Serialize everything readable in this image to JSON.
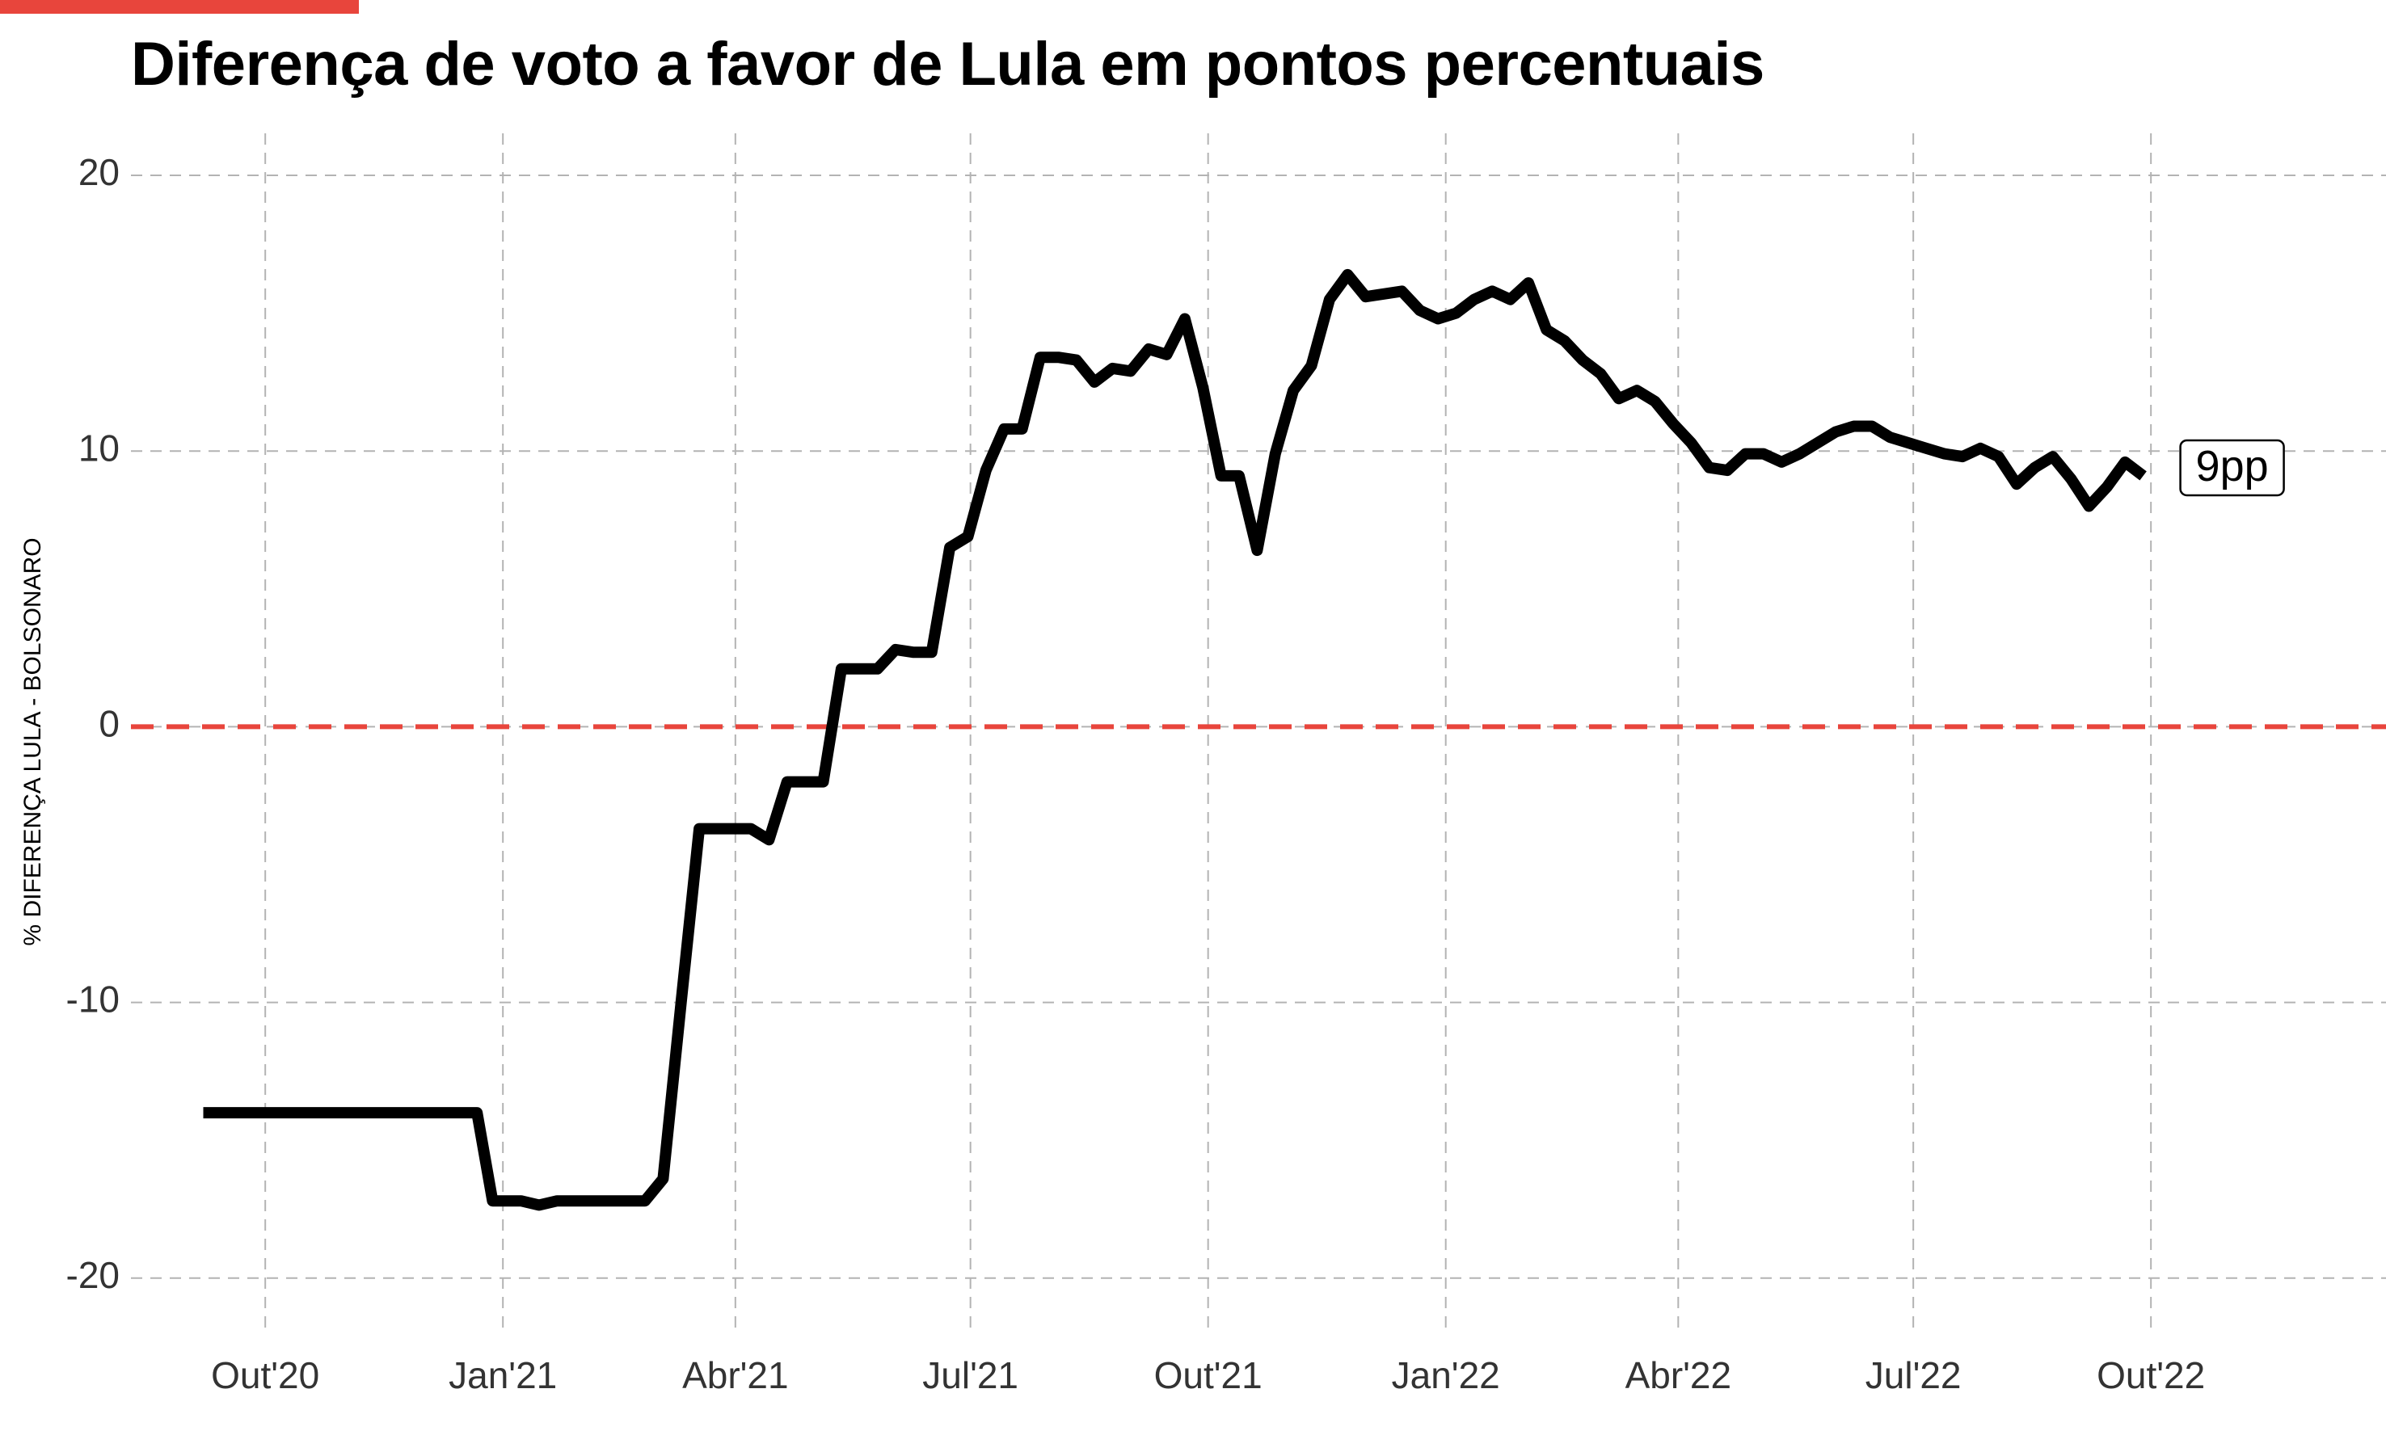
{
  "colors": {
    "accent": "#e8453c",
    "line": "#000000",
    "zero_line": "#e8453c",
    "grid": "#b3b3b3"
  },
  "chart_data": {
    "type": "line",
    "title": "Diferença de voto a favor de Lula em pontos percentuais",
    "ylabel": "% DIFERENÇA LULA - BOLSONARO",
    "xlabel": "",
    "ylim": [
      -22,
      20.5
    ],
    "xlim": [
      "2020-08-10",
      "2022-12-31"
    ],
    "grid": true,
    "x_ticks": [
      {
        "date": "2020-10-01",
        "label": "Out'20"
      },
      {
        "date": "2021-01-01",
        "label": "Jan'21"
      },
      {
        "date": "2021-04-01",
        "label": "Abr'21"
      },
      {
        "date": "2021-07-01",
        "label": "Jul'21"
      },
      {
        "date": "2021-10-01",
        "label": "Out'21"
      },
      {
        "date": "2022-01-01",
        "label": "Jan'22"
      },
      {
        "date": "2022-04-01",
        "label": "Abr'22"
      },
      {
        "date": "2022-07-01",
        "label": "Jul'22"
      },
      {
        "date": "2022-10-01",
        "label": "Out'22"
      }
    ],
    "y_ticks": [
      20,
      10,
      0,
      -10,
      -20
    ],
    "reference_line": {
      "y": 0,
      "style": "dashed"
    },
    "end_label": "9pp",
    "series": [
      {
        "points": [
          [
            "2020-09-07",
            -14.0
          ],
          [
            "2020-12-22",
            -14.0
          ],
          [
            "2020-12-28",
            -17.2
          ],
          [
            "2021-01-08",
            -17.2
          ],
          [
            "2021-01-15",
            -17.35
          ],
          [
            "2021-01-22",
            -17.2
          ],
          [
            "2021-02-25",
            -17.2
          ],
          [
            "2021-03-04",
            -16.4
          ],
          [
            "2021-03-11",
            -10.0
          ],
          [
            "2021-03-18",
            -3.7
          ],
          [
            "2021-04-07",
            -3.7
          ],
          [
            "2021-04-14",
            -4.1
          ],
          [
            "2021-04-21",
            -2.0
          ],
          [
            "2021-05-05",
            -2.0
          ],
          [
            "2021-05-12",
            2.1
          ],
          [
            "2021-05-26",
            2.1
          ],
          [
            "2021-06-02",
            2.8
          ],
          [
            "2021-06-09",
            2.7
          ],
          [
            "2021-06-16",
            2.7
          ],
          [
            "2021-06-23",
            6.5
          ],
          [
            "2021-06-30",
            6.9
          ],
          [
            "2021-07-07",
            9.3
          ],
          [
            "2021-07-14",
            10.8
          ],
          [
            "2021-07-21",
            10.8
          ],
          [
            "2021-07-28",
            13.4
          ],
          [
            "2021-08-04",
            13.4
          ],
          [
            "2021-08-11",
            13.3
          ],
          [
            "2021-08-18",
            12.5
          ],
          [
            "2021-08-25",
            13.0
          ],
          [
            "2021-09-01",
            12.9
          ],
          [
            "2021-09-08",
            13.7
          ],
          [
            "2021-09-15",
            13.5
          ],
          [
            "2021-09-22",
            14.8
          ],
          [
            "2021-09-29",
            12.3
          ],
          [
            "2021-10-06",
            9.1
          ],
          [
            "2021-10-13",
            9.1
          ],
          [
            "2021-10-20",
            6.4
          ],
          [
            "2021-10-27",
            9.9
          ],
          [
            "2021-11-03",
            12.2
          ],
          [
            "2021-11-10",
            13.1
          ],
          [
            "2021-11-17",
            15.5
          ],
          [
            "2021-11-24",
            16.4
          ],
          [
            "2021-12-01",
            15.6
          ],
          [
            "2021-12-08",
            15.7
          ],
          [
            "2021-12-15",
            15.8
          ],
          [
            "2021-12-22",
            15.1
          ],
          [
            "2021-12-29",
            14.8
          ],
          [
            "2022-01-05",
            15.0
          ],
          [
            "2022-01-12",
            15.5
          ],
          [
            "2022-01-19",
            15.8
          ],
          [
            "2022-01-26",
            15.5
          ],
          [
            "2022-02-02",
            16.1
          ],
          [
            "2022-02-09",
            14.4
          ],
          [
            "2022-02-16",
            14.0
          ],
          [
            "2022-02-23",
            13.3
          ],
          [
            "2022-03-02",
            12.8
          ],
          [
            "2022-03-09",
            11.9
          ],
          [
            "2022-03-16",
            12.2
          ],
          [
            "2022-03-23",
            11.8
          ],
          [
            "2022-03-30",
            11.0
          ],
          [
            "2022-04-06",
            10.3
          ],
          [
            "2022-04-13",
            9.4
          ],
          [
            "2022-04-20",
            9.3
          ],
          [
            "2022-04-27",
            9.9
          ],
          [
            "2022-05-04",
            9.9
          ],
          [
            "2022-05-11",
            9.6
          ],
          [
            "2022-05-18",
            9.9
          ],
          [
            "2022-05-25",
            10.3
          ],
          [
            "2022-06-01",
            10.7
          ],
          [
            "2022-06-08",
            10.9
          ],
          [
            "2022-06-15",
            10.9
          ],
          [
            "2022-06-22",
            10.5
          ],
          [
            "2022-06-29",
            10.3
          ],
          [
            "2022-07-06",
            10.1
          ],
          [
            "2022-07-13",
            9.9
          ],
          [
            "2022-07-20",
            9.8
          ],
          [
            "2022-07-27",
            10.1
          ],
          [
            "2022-08-03",
            9.8
          ],
          [
            "2022-08-10",
            8.8
          ],
          [
            "2022-08-17",
            9.4
          ],
          [
            "2022-08-24",
            9.8
          ],
          [
            "2022-08-31",
            9.0
          ],
          [
            "2022-09-07",
            8.0
          ],
          [
            "2022-09-14",
            8.7
          ],
          [
            "2022-09-21",
            9.6
          ],
          [
            "2022-09-28",
            9.1
          ]
        ]
      }
    ]
  }
}
